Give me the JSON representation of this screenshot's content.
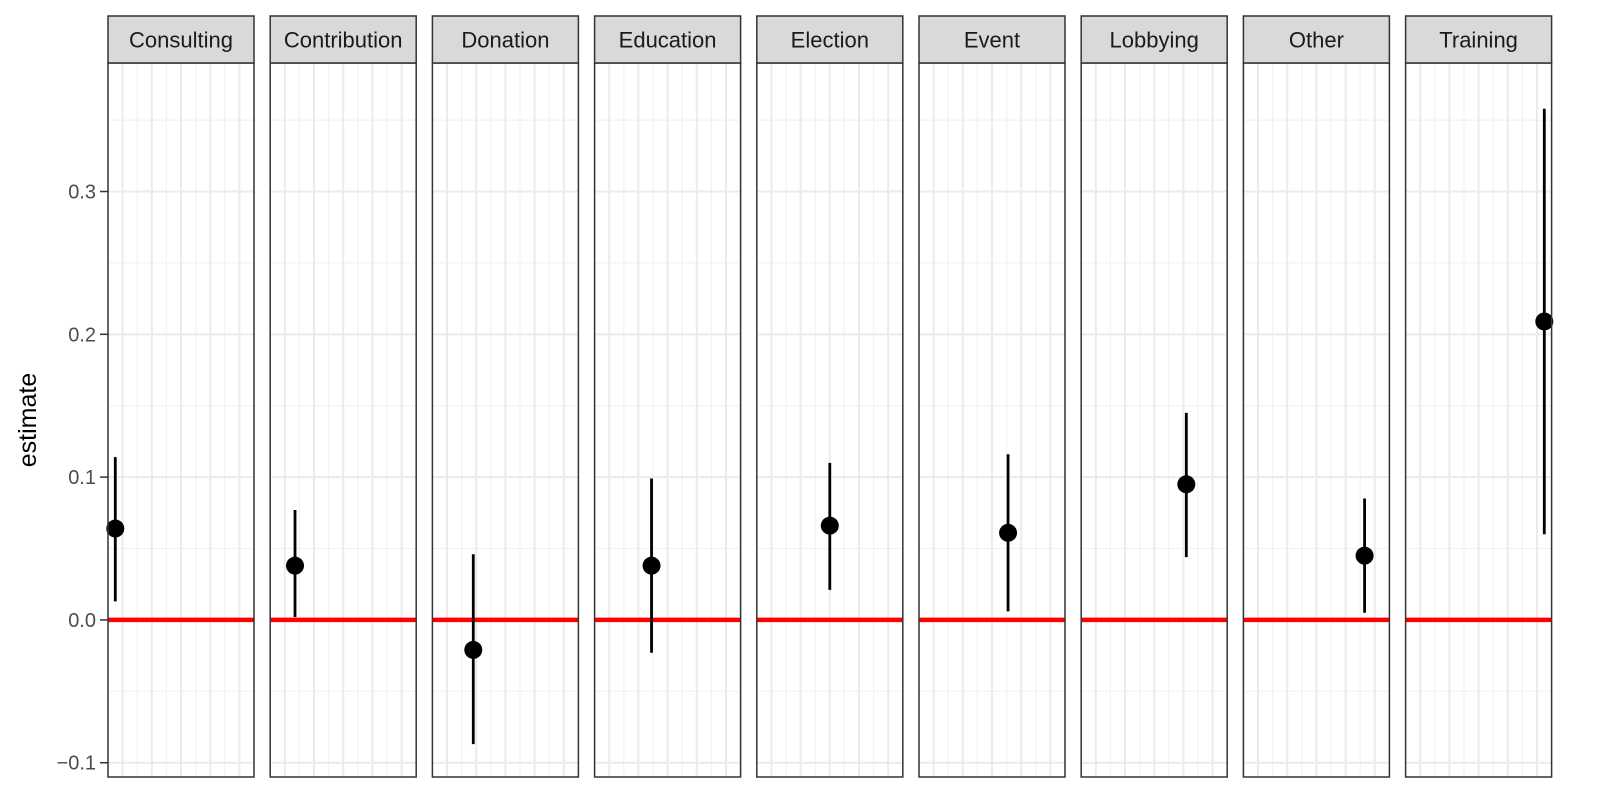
{
  "chart_data": {
    "type": "scatter",
    "layout": "facets",
    "ylabel": "estimate",
    "xlabel": "",
    "ylim": [
      -0.11,
      0.39
    ],
    "yticks": [
      -0.1,
      0.0,
      0.1,
      0.2,
      0.3
    ],
    "ytick_labels": [
      "−0.1",
      "0.0",
      "0.1",
      "0.2",
      "0.3"
    ],
    "grid": true,
    "reference_line": {
      "y": 0.0,
      "color": "#ff0000"
    },
    "point_color": "#000000",
    "strip_color": "#d9d9d9",
    "facets": [
      {
        "label": "Consulting",
        "x": 0.05,
        "estimate": 0.064,
        "lower": 0.013,
        "upper": 0.114
      },
      {
        "label": "Contribution",
        "x": 0.17,
        "estimate": 0.038,
        "lower": 0.002,
        "upper": 0.077
      },
      {
        "label": "Donation",
        "x": 0.28,
        "estimate": -0.021,
        "lower": -0.087,
        "upper": 0.046
      },
      {
        "label": "Education",
        "x": 0.39,
        "estimate": 0.038,
        "lower": -0.023,
        "upper": 0.099
      },
      {
        "label": "Election",
        "x": 0.5,
        "estimate": 0.066,
        "lower": 0.021,
        "upper": 0.11
      },
      {
        "label": "Event",
        "x": 0.61,
        "estimate": 0.061,
        "lower": 0.006,
        "upper": 0.116
      },
      {
        "label": "Lobbying",
        "x": 0.72,
        "estimate": 0.095,
        "lower": 0.044,
        "upper": 0.145
      },
      {
        "label": "Other",
        "x": 0.83,
        "estimate": 0.045,
        "lower": 0.005,
        "upper": 0.085
      },
      {
        "label": "Training",
        "x": 0.95,
        "estimate": 0.209,
        "lower": 0.06,
        "upper": 0.358
      }
    ]
  }
}
